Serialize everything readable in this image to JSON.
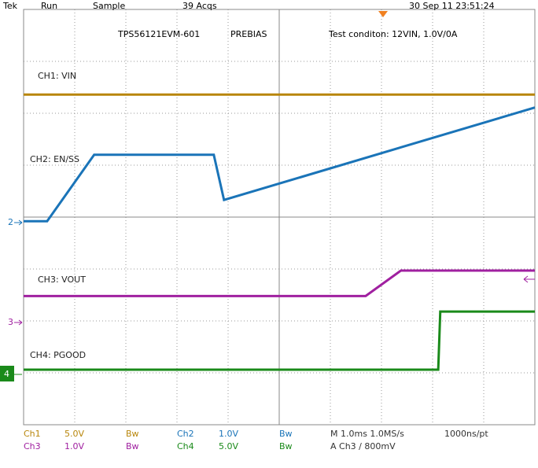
{
  "header": {
    "brand": "Tek",
    "state": "Run",
    "mode": "Sample",
    "acquisitions": "39 Acqs",
    "timestamp": "30 Sep 11 23:51:24"
  },
  "screen": {
    "board": "TPS56121EVM-601",
    "case": "PREBIAS",
    "condition": "Test conditon: 12VIN, 1.0V/0A"
  },
  "markers": [
    "2",
    "3",
    "4"
  ],
  "chart_data": {
    "type": "line",
    "xlim": [
      0,
      10
    ],
    "ylim": [
      -4,
      4
    ],
    "series": [
      {
        "name": "CH1: VIN",
        "color": "#b8860b",
        "x": [
          0,
          10
        ],
        "values": [
          2.36,
          2.36
        ]
      },
      {
        "name": "CH2: EN/SS",
        "color": "#1a74b8",
        "x": [
          0,
          0.46,
          1.38,
          3.72,
          3.92,
          10
        ],
        "values": [
          -0.08,
          -0.08,
          1.2,
          1.2,
          0.33,
          2.11
        ]
      },
      {
        "name": "CH3: VOUT",
        "color": "#a020a0",
        "x": [
          0,
          6.69,
          7.38,
          10
        ],
        "values": [
          -1.52,
          -1.52,
          -1.03,
          -1.03
        ]
      },
      {
        "name": "CH4: PGOOD",
        "color": "#1a8a1a",
        "x": [
          0,
          8.11,
          8.15,
          10
        ],
        "values": [
          -2.94,
          -2.94,
          -1.82,
          -1.82
        ]
      }
    ]
  },
  "footer": {
    "row1": [
      "Ch1",
      "5.0V",
      "Bw",
      "Ch2",
      "1.0V",
      "Bw",
      "M 1.0ms 1.0MS/s",
      "1000ns/pt"
    ],
    "row2": [
      "Ch3",
      "1.0V",
      "Bw",
      "Ch4",
      "5.0V",
      "Bw",
      "A  Ch3  ∕  800mV"
    ]
  }
}
